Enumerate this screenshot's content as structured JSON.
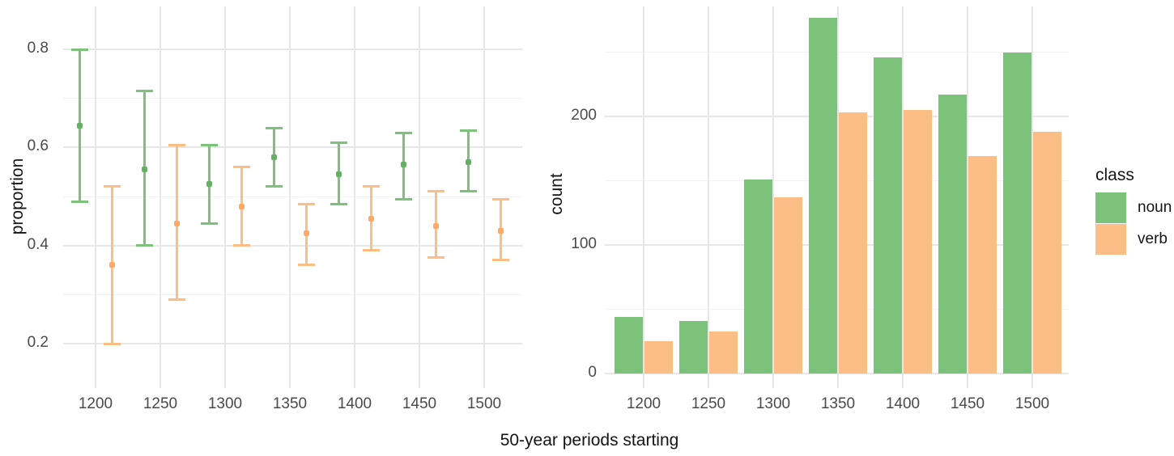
{
  "x_title": "50-year periods starting",
  "legend": {
    "title": "class",
    "position": "right",
    "items": [
      {
        "label": "noun",
        "color": "#7dc27b"
      },
      {
        "label": "verb",
        "color": "#fdbe85"
      }
    ]
  },
  "colors": {
    "background": "#ffffff",
    "grid_major": "#e7e7e7",
    "grid_minor": "#f2f2f2",
    "axis_text": "#4a4a4a",
    "title_text": "#141414",
    "noun": "#7dc27b",
    "verb": "#fdbe85",
    "noun_point": "#63b262",
    "verb_point": "#fcab67"
  },
  "chart_data": [
    {
      "type": "pointrange",
      "title": "",
      "xlabel": "50-year periods starting",
      "ylabel": "proportion",
      "x": [
        1200,
        1250,
        1300,
        1350,
        1400,
        1450,
        1500
      ],
      "xticks": [
        1200,
        1250,
        1300,
        1350,
        1400,
        1450,
        1500
      ],
      "yticks": [
        0.2,
        0.4,
        0.6,
        0.8
      ],
      "yticks_minor": [
        0.3,
        0.5,
        0.7
      ],
      "ylim": [
        0.11,
        0.89
      ],
      "grid": true,
      "legend_position": "none",
      "series": [
        {
          "name": "noun",
          "color": "#7dc27b",
          "mid": [
            0.645,
            0.555,
            0.525,
            0.58,
            0.545,
            0.565,
            0.57
          ],
          "lower": [
            0.49,
            0.4,
            0.445,
            0.52,
            0.485,
            0.495,
            0.51
          ],
          "upper": [
            0.8,
            0.715,
            0.605,
            0.64,
            0.61,
            0.63,
            0.635
          ]
        },
        {
          "name": "verb",
          "color": "#fdbe85",
          "mid": [
            0.36,
            0.445,
            0.48,
            0.425,
            0.455,
            0.44,
            0.43
          ],
          "lower": [
            0.2,
            0.29,
            0.4,
            0.36,
            0.39,
            0.375,
            0.37
          ],
          "upper": [
            0.52,
            0.605,
            0.56,
            0.485,
            0.52,
            0.51,
            0.495
          ]
        }
      ]
    },
    {
      "type": "bar",
      "title": "",
      "xlabel": "50-year periods starting",
      "ylabel": "count",
      "categories": [
        1200,
        1250,
        1300,
        1350,
        1400,
        1450,
        1500
      ],
      "yticks": [
        0,
        100,
        200
      ],
      "yticks_minor": [
        50,
        150,
        250
      ],
      "ylim": [
        0,
        285
      ],
      "grid": true,
      "legend_position": "right",
      "series": [
        {
          "name": "noun",
          "color": "#7dc27b",
          "values": [
            44,
            41,
            151,
            277,
            246,
            217,
            250
          ]
        },
        {
          "name": "verb",
          "color": "#fdbe85",
          "values": [
            25,
            33,
            137,
            203,
            205,
            169,
            188
          ]
        }
      ]
    }
  ]
}
